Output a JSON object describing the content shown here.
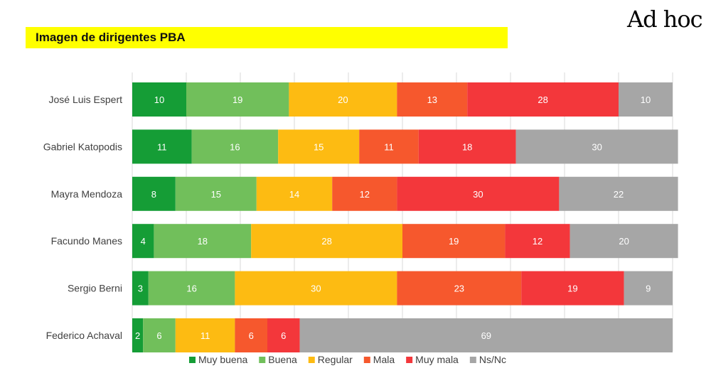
{
  "header": {
    "title": "Imagen de dirigentes PBA",
    "brand": "Ad hoc"
  },
  "chart_data": {
    "type": "bar",
    "orientation": "horizontal",
    "stacked": true,
    "percent_stacked": true,
    "title": "Imagen de dirigentes PBA",
    "categories": [
      "José Luis Espert",
      "Gabriel Katopodis",
      "Mayra Mendoza",
      "Facundo Manes",
      "Sergio Berni",
      "Federico Achaval"
    ],
    "series": [
      {
        "name": "Muy buena",
        "color": "#159d36",
        "values": [
          10,
          11,
          8,
          4,
          3,
          2
        ]
      },
      {
        "name": "Buena",
        "color": "#71bf5b",
        "values": [
          19,
          16,
          15,
          18,
          16,
          6
        ]
      },
      {
        "name": "Regular",
        "color": "#fdbb12",
        "values": [
          20,
          15,
          14,
          28,
          30,
          11
        ]
      },
      {
        "name": "Mala",
        "color": "#f6582d",
        "values": [
          13,
          11,
          12,
          19,
          23,
          6
        ]
      },
      {
        "name": "Muy mala",
        "color": "#f3373b",
        "values": [
          28,
          18,
          30,
          12,
          19,
          6
        ]
      },
      {
        "name": "Ns/Nc",
        "color": "#a6a6a6",
        "values": [
          10,
          30,
          22,
          20,
          9,
          69
        ]
      }
    ],
    "xlim": [
      0,
      100
    ],
    "grid": true,
    "legend": "bottom",
    "xlabel": "",
    "ylabel": ""
  }
}
